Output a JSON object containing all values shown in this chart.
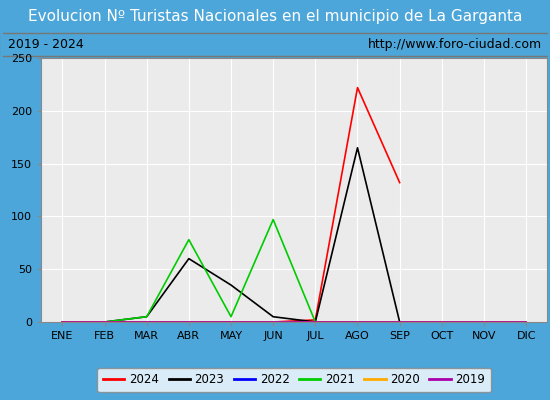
{
  "title": "Evolucion Nº Turistas Nacionales en el municipio de La Garganta",
  "subtitle_left": "2019 - 2024",
  "subtitle_right": "http://www.foro-ciudad.com",
  "months": [
    "ENE",
    "FEB",
    "MAR",
    "ABR",
    "MAY",
    "JUN",
    "JUL",
    "AGO",
    "SEP",
    "OCT",
    "NOV",
    "DIC"
  ],
  "series": [
    {
      "label": "2024",
      "color": "#ff0000",
      "data": [
        0,
        0,
        0,
        0,
        0,
        0,
        2,
        222,
        132,
        null,
        null,
        null
      ]
    },
    {
      "label": "2023",
      "color": "#000000",
      "data": [
        0,
        0,
        5,
        60,
        35,
        5,
        0,
        165,
        0,
        0,
        0,
        0
      ]
    },
    {
      "label": "2022",
      "color": "#0000ff",
      "data": [
        0,
        0,
        0,
        0,
        0,
        0,
        0,
        0,
        0,
        0,
        0,
        0
      ]
    },
    {
      "label": "2021",
      "color": "#00cc00",
      "data": [
        0,
        0,
        5,
        78,
        5,
        97,
        0,
        0,
        0,
        0,
        0,
        0
      ]
    },
    {
      "label": "2020",
      "color": "#ffaa00",
      "data": [
        0,
        0,
        0,
        0,
        0,
        0,
        0,
        0,
        0,
        0,
        0,
        0
      ]
    },
    {
      "label": "2019",
      "color": "#aa00aa",
      "data": [
        0,
        0,
        0,
        0,
        0,
        0,
        0,
        0,
        0,
        0,
        0,
        0
      ]
    }
  ],
  "ylim": [
    0,
    250
  ],
  "yticks": [
    0,
    50,
    100,
    150,
    200,
    250
  ],
  "title_bg_color": "#4da6d9",
  "title_text_color": "#ffffff",
  "subtitle_bg_color": "#e8e8e8",
  "plot_bg_color": "#ebebeb",
  "grid_color": "#ffffff",
  "border_color": "#999999",
  "outer_border_color": "#4da6d9",
  "title_fontsize": 11,
  "subtitle_fontsize": 9,
  "tick_fontsize": 8,
  "legend_fontsize": 8.5
}
